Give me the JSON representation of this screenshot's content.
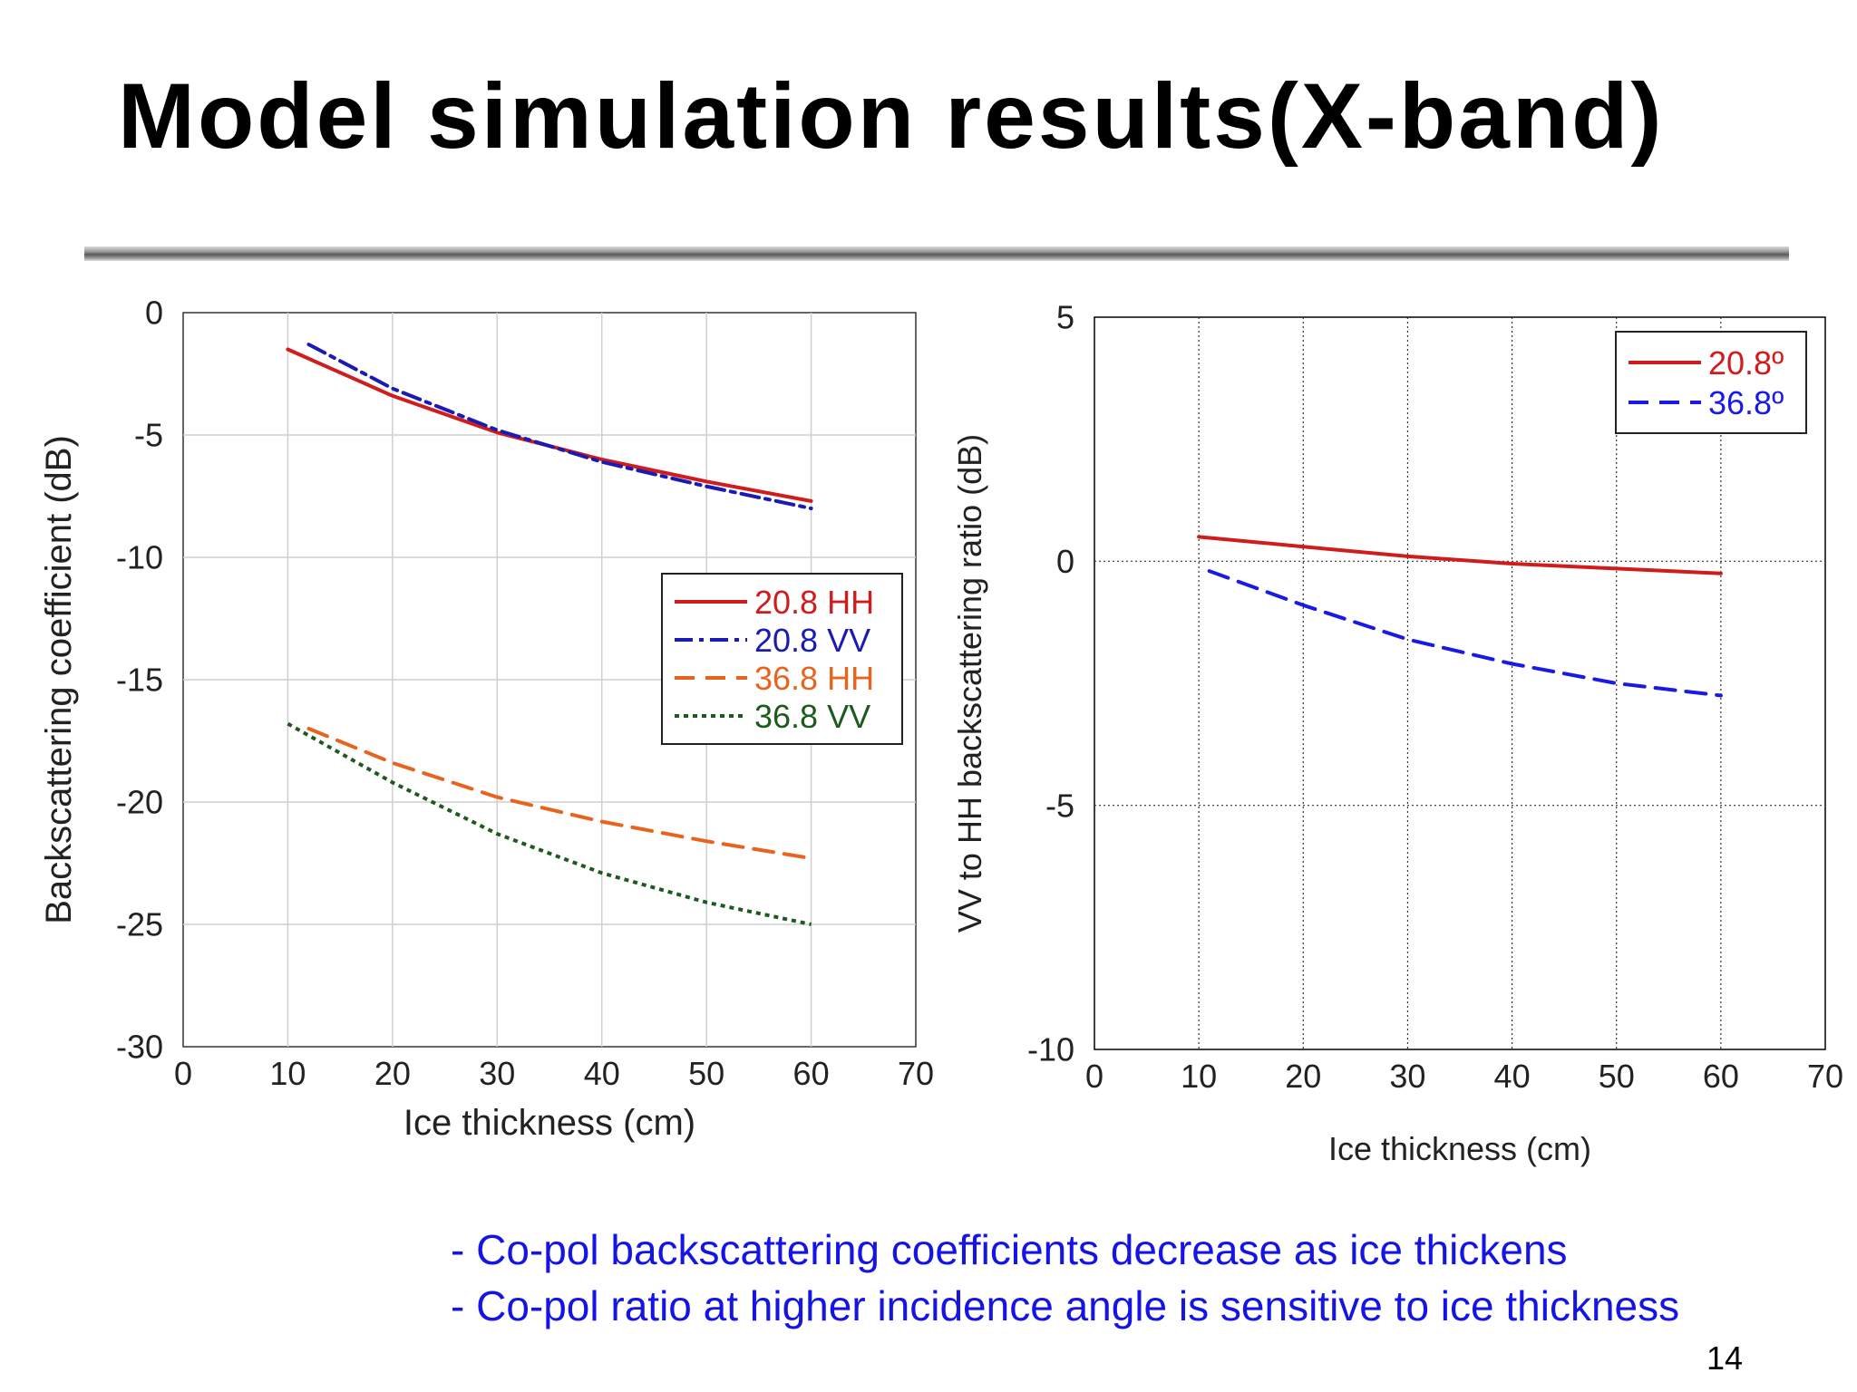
{
  "slide": {
    "title": "Model simulation results(X-band)",
    "bullets": [
      "- Co-pol backscattering coefficients decrease as ice thickens",
      "- Co-pol ratio at higher incidence angle is sensitive to ice thickness"
    ],
    "page_number": "14"
  },
  "chart_data": [
    {
      "type": "line",
      "xlabel": "Ice thickness (cm)",
      "ylabel": "Backscattering coefficient (dB)",
      "xlim": [
        0,
        70
      ],
      "ylim": [
        -30,
        0
      ],
      "xticks": [
        "0",
        "10",
        "20",
        "30",
        "40",
        "50",
        "60",
        "70"
      ],
      "yticks": [
        "0",
        "-5",
        "-10",
        "-15",
        "-20",
        "-25",
        "-30"
      ],
      "grid": true,
      "legend_position": "center-right",
      "series": [
        {
          "name": "20.8 HH",
          "color": "#d01c1c",
          "style": "solid",
          "x": [
            10,
            20,
            30,
            40,
            50,
            60
          ],
          "y": [
            -1.5,
            -3.4,
            -4.9,
            -6.0,
            -6.9,
            -7.7
          ]
        },
        {
          "name": "20.8 VV",
          "color": "#1a1ab4",
          "style": "dashdot",
          "x": [
            12,
            20,
            30,
            40,
            50,
            60
          ],
          "y": [
            -1.3,
            -3.1,
            -4.8,
            -6.1,
            -7.1,
            -8.0
          ]
        },
        {
          "name": "36.8 HH",
          "color": "#e8641e",
          "style": "dashed",
          "x": [
            12,
            20,
            30,
            40,
            50,
            60
          ],
          "y": [
            -17.0,
            -18.4,
            -19.8,
            -20.8,
            -21.6,
            -22.3
          ]
        },
        {
          "name": "36.8 VV",
          "color": "#1e5a1e",
          "style": "dotted",
          "x": [
            10,
            20,
            30,
            40,
            50,
            60
          ],
          "y": [
            -16.8,
            -19.2,
            -21.3,
            -22.9,
            -24.1,
            -25.0
          ]
        }
      ]
    },
    {
      "type": "line",
      "xlabel": "Ice thickness (cm)",
      "ylabel": "VV to HH backscattering ratio (dB)",
      "xlim": [
        0,
        70
      ],
      "ylim": [
        -10,
        5
      ],
      "xticks": [
        "0",
        "10",
        "20",
        "30",
        "40",
        "50",
        "60",
        "70"
      ],
      "yticks": [
        "5",
        "0",
        "-5",
        "-10"
      ],
      "grid": true,
      "legend_position": "top-right",
      "series": [
        {
          "name": "20.8º",
          "color": "#d01c1c",
          "style": "solid",
          "x": [
            10,
            20,
            30,
            40,
            50,
            60
          ],
          "y": [
            0.5,
            0.3,
            0.1,
            -0.05,
            -0.15,
            -0.25
          ]
        },
        {
          "name": "36.8º",
          "color": "#1a1ae6",
          "style": "dashed",
          "x": [
            11,
            20,
            30,
            40,
            50,
            60
          ],
          "y": [
            -0.2,
            -0.9,
            -1.6,
            -2.1,
            -2.5,
            -2.75
          ]
        }
      ]
    }
  ]
}
